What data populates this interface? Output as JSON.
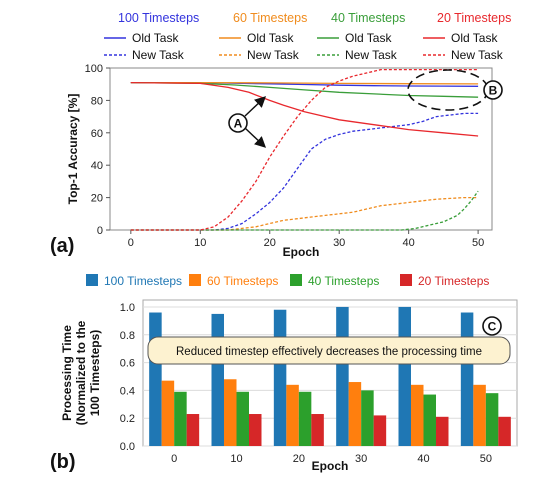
{
  "chart_data": [
    {
      "panel_label": "(a)",
      "type": "line",
      "xlabel": "Epoch",
      "ylabel": "Top-1 Accuracy [%]",
      "xlim": [
        -3,
        52
      ],
      "ylim": [
        0,
        100
      ],
      "xticks": [
        0,
        10,
        20,
        30,
        40,
        50
      ],
      "yticks": [
        0,
        20,
        40,
        60,
        80,
        100
      ],
      "legend": {
        "placement": "top",
        "groups": [
          {
            "title": "100 Timesteps",
            "color": "#3333dd",
            "old": "Old Task",
            "new": "New Task"
          },
          {
            "title": "60 Timesteps",
            "color": "#f08c1e",
            "old": "Old Task",
            "new": "New Task"
          },
          {
            "title": "40 Timesteps",
            "color": "#3a9e3a",
            "old": "Old Task",
            "new": "New Task"
          },
          {
            "title": "20 Timesteps",
            "color": "#e8282d",
            "old": "Old Task",
            "new": "New Task"
          }
        ]
      },
      "series": [
        {
          "timesteps": 100,
          "task": "old",
          "style": "solid",
          "color": "#3333dd",
          "x": [
            0,
            5,
            10,
            15,
            20,
            25,
            30,
            35,
            40,
            45,
            50
          ],
          "values": [
            91,
            91,
            91,
            90.6,
            90.2,
            89.8,
            89.4,
            89.1,
            88.9,
            88.8,
            88.7
          ]
        },
        {
          "timesteps": 100,
          "task": "new",
          "style": "dashed",
          "color": "#3333dd",
          "x": [
            0,
            10,
            12,
            14,
            16,
            18,
            20,
            22,
            24,
            26,
            28,
            30,
            32,
            34,
            36,
            38,
            40,
            42,
            44,
            46,
            48,
            50
          ],
          "values": [
            0,
            0,
            0,
            1,
            4,
            10,
            17,
            26,
            38,
            50,
            56,
            59,
            61,
            62,
            63,
            64,
            65,
            67,
            70,
            71,
            72,
            72
          ]
        },
        {
          "timesteps": 60,
          "task": "old",
          "style": "solid",
          "color": "#f08c1e",
          "x": [
            0,
            10,
            20,
            30,
            40,
            50
          ],
          "values": [
            91,
            91,
            90.8,
            90.5,
            90.3,
            90.2
          ]
        },
        {
          "timesteps": 60,
          "task": "new",
          "style": "dashed",
          "color": "#f08c1e",
          "x": [
            0,
            14,
            16,
            18,
            20,
            22,
            24,
            26,
            28,
            30,
            32,
            34,
            36,
            38,
            40,
            42,
            44,
            46,
            48,
            50
          ],
          "values": [
            0,
            0,
            1,
            2,
            4,
            6,
            7,
            8,
            9,
            10,
            11,
            13,
            15,
            16,
            17,
            18,
            19,
            19.5,
            20,
            20
          ]
        },
        {
          "timesteps": 40,
          "task": "old",
          "style": "solid",
          "color": "#3a9e3a",
          "x": [
            0,
            10,
            15,
            20,
            25,
            30,
            35,
            40,
            45,
            50
          ],
          "values": [
            91,
            90.5,
            89.5,
            88,
            86.5,
            85,
            84,
            83,
            82.5,
            82
          ]
        },
        {
          "timesteps": 40,
          "task": "new",
          "style": "dashed",
          "color": "#3a9e3a",
          "x": [
            0,
            39,
            41,
            43,
            45,
            47,
            48,
            49,
            50
          ],
          "values": [
            0,
            0,
            1,
            3,
            5,
            9,
            13,
            18,
            24
          ]
        },
        {
          "timesteps": 20,
          "task": "old",
          "style": "solid",
          "color": "#e8282d",
          "x": [
            0,
            10,
            14,
            17,
            20,
            22,
            25,
            28,
            30,
            35,
            40,
            45,
            50
          ],
          "values": [
            91,
            90.5,
            88,
            85,
            80,
            77,
            73,
            70,
            68,
            65,
            62,
            60,
            58
          ]
        },
        {
          "timesteps": 20,
          "task": "new",
          "style": "dashed",
          "color": "#e8282d",
          "x": [
            0,
            10,
            12,
            14,
            16,
            18,
            20,
            22,
            24,
            26,
            28,
            30,
            32,
            34,
            36,
            38,
            50
          ],
          "values": [
            0,
            0,
            2,
            8,
            18,
            30,
            45,
            58,
            70,
            80,
            88,
            92,
            95,
            97,
            99,
            99,
            99
          ]
        }
      ],
      "annotations": [
        {
          "label": "A",
          "points_to": "20 Timesteps curves near epoch 20"
        },
        {
          "label": "B",
          "points_to": "Old Task curves near epochs 40–50"
        }
      ]
    },
    {
      "panel_label": "(b)",
      "type": "bar",
      "xlabel": "Epoch",
      "ylabel": "Processing Time (Normalized to the 100 Timesteps)",
      "ylim": [
        0,
        1.05
      ],
      "yticks": [
        0.0,
        0.2,
        0.4,
        0.6,
        0.8,
        1.0
      ],
      "categories": [
        "0",
        "10",
        "20",
        "30",
        "40",
        "50"
      ],
      "legend": {
        "placement": "top"
      },
      "series": [
        {
          "name": "100 Timesteps",
          "color": "#1f77b4",
          "values": [
            0.96,
            0.95,
            0.98,
            1.0,
            1.0,
            0.96
          ]
        },
        {
          "name": "60 Timesteps",
          "color": "#ff7f0e",
          "values": [
            0.47,
            0.48,
            0.44,
            0.46,
            0.44,
            0.44
          ]
        },
        {
          "name": "40 Timesteps",
          "color": "#2ca02c",
          "values": [
            0.39,
            0.39,
            0.39,
            0.4,
            0.37,
            0.38
          ]
        },
        {
          "name": "20 Timesteps",
          "color": "#d62728",
          "values": [
            0.23,
            0.23,
            0.23,
            0.22,
            0.21,
            0.21
          ]
        }
      ],
      "annotation": {
        "label": "C",
        "text": "Reduced timestep effectively decreases the processing time",
        "box_color": "#fdf2d0"
      }
    }
  ]
}
